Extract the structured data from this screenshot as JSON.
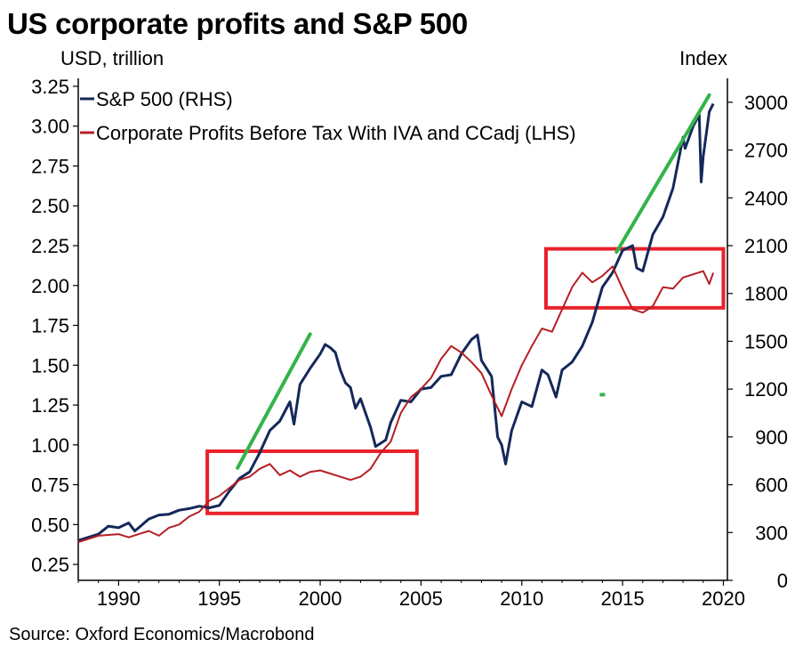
{
  "chart_data": {
    "type": "line",
    "title": "US corporate profits and S&P 500",
    "left_axis_label": "USD, trillion",
    "right_axis_label": "Index",
    "source": "Source: Oxford Economics/Macrobond",
    "colors": {
      "sp500": "#14285a",
      "profits": "#b51f24",
      "trend": "#33b34a",
      "highlight": "#e8212b"
    },
    "x_axis": {
      "range": [
        1988,
        2020.2
      ],
      "ticks": [
        1990,
        1995,
        2000,
        2005,
        2010,
        2015,
        2020
      ],
      "tick_labels": [
        "1990",
        "1995",
        "2000",
        "2005",
        "2010",
        "2015",
        "2020"
      ]
    },
    "left_axis": {
      "range": [
        0.15,
        3.3
      ],
      "ticks": [
        0.25,
        0.5,
        0.75,
        1.0,
        1.25,
        1.5,
        1.75,
        2.0,
        2.25,
        2.5,
        2.75,
        3.0,
        3.25
      ],
      "tick_labels": [
        "0.25",
        "0.50",
        "0.75",
        "1.00",
        "1.25",
        "1.50",
        "1.75",
        "2.00",
        "2.25",
        "2.50",
        "2.75",
        "3.00",
        "3.25"
      ]
    },
    "right_axis": {
      "range": [
        0,
        3150
      ],
      "ticks": [
        0,
        300,
        600,
        900,
        1200,
        1500,
        1800,
        2100,
        2400,
        2700,
        3000
      ],
      "tick_labels": [
        "0",
        "300",
        "600",
        "900",
        "1200",
        "1500",
        "1800",
        "2100",
        "2400",
        "2700",
        "3000"
      ]
    },
    "legend": {
      "position": "top-left"
    },
    "series": [
      {
        "name": "S&P 500 (RHS)",
        "axis": "right",
        "x": [
          1988.0,
          1988.5,
          1989.0,
          1989.5,
          1990.0,
          1990.5,
          1990.8,
          1991.0,
          1991.5,
          1992.0,
          1992.5,
          1993.0,
          1993.5,
          1994.0,
          1994.5,
          1995.0,
          1995.5,
          1996.0,
          1996.5,
          1997.0,
          1997.5,
          1998.0,
          1998.5,
          1998.7,
          1999.0,
          1999.5,
          2000.0,
          2000.25,
          2000.5,
          2000.75,
          2001.0,
          2001.25,
          2001.5,
          2001.75,
          2002.0,
          2002.5,
          2002.75,
          2003.0,
          2003.25,
          2003.5,
          2004.0,
          2004.5,
          2005.0,
          2005.5,
          2006.0,
          2006.5,
          2007.0,
          2007.5,
          2007.8,
          2008.0,
          2008.5,
          2008.8,
          2009.0,
          2009.2,
          2009.5,
          2010.0,
          2010.5,
          2011.0,
          2011.3,
          2011.7,
          2012.0,
          2012.5,
          2013.0,
          2013.5,
          2014.0,
          2014.5,
          2015.0,
          2015.5,
          2015.7,
          2016.0,
          2016.5,
          2017.0,
          2017.5,
          2018.0,
          2018.1,
          2018.5,
          2018.8,
          2018.9,
          2019.0,
          2019.3,
          2019.5
        ],
        "values": [
          250,
          270,
          290,
          340,
          330,
          360,
          310,
          330,
          385,
          410,
          415,
          440,
          450,
          465,
          455,
          470,
          560,
          640,
          680,
          800,
          940,
          1000,
          1120,
          980,
          1230,
          1330,
          1420,
          1480,
          1460,
          1430,
          1320,
          1240,
          1210,
          1080,
          1140,
          960,
          840,
          860,
          880,
          990,
          1130,
          1120,
          1200,
          1210,
          1280,
          1290,
          1420,
          1510,
          1540,
          1380,
          1280,
          900,
          850,
          730,
          940,
          1120,
          1090,
          1320,
          1290,
          1150,
          1320,
          1370,
          1470,
          1620,
          1840,
          1930,
          2070,
          2100,
          1960,
          1940,
          2170,
          2280,
          2460,
          2780,
          2710,
          2850,
          2920,
          2500,
          2660,
          2940,
          2990
        ]
      },
      {
        "name": "Corporate Profits Before Tax With IVA and CCadj (LHS)",
        "axis": "left",
        "x": [
          1988.0,
          1989.0,
          1990.0,
          1990.5,
          1991.0,
          1991.5,
          1992.0,
          1992.5,
          1993.0,
          1993.5,
          1994.0,
          1994.5,
          1995.0,
          1995.5,
          1996.0,
          1996.5,
          1997.0,
          1997.5,
          1998.0,
          1998.5,
          1999.0,
          1999.5,
          2000.0,
          2000.5,
          2001.0,
          2001.5,
          2002.0,
          2002.5,
          2003.0,
          2003.5,
          2004.0,
          2004.5,
          2005.0,
          2005.5,
          2006.0,
          2006.5,
          2007.0,
          2007.5,
          2008.0,
          2008.5,
          2009.0,
          2009.5,
          2010.0,
          2010.5,
          2011.0,
          2011.5,
          2012.0,
          2012.5,
          2013.0,
          2013.5,
          2014.0,
          2014.5,
          2015.0,
          2015.5,
          2016.0,
          2016.5,
          2017.0,
          2017.5,
          2018.0,
          2018.5,
          2019.0,
          2019.3,
          2019.5
        ],
        "values": [
          0.39,
          0.43,
          0.44,
          0.42,
          0.44,
          0.46,
          0.43,
          0.48,
          0.5,
          0.55,
          0.58,
          0.65,
          0.68,
          0.73,
          0.78,
          0.8,
          0.85,
          0.88,
          0.81,
          0.84,
          0.8,
          0.83,
          0.84,
          0.82,
          0.8,
          0.78,
          0.8,
          0.85,
          0.95,
          1.02,
          1.2,
          1.3,
          1.35,
          1.42,
          1.54,
          1.62,
          1.58,
          1.52,
          1.45,
          1.31,
          1.18,
          1.35,
          1.5,
          1.62,
          1.73,
          1.71,
          1.85,
          1.99,
          2.08,
          2.02,
          2.06,
          2.12,
          1.98,
          1.85,
          1.83,
          1.87,
          1.99,
          1.98,
          2.05,
          2.07,
          2.09,
          2.01,
          2.08
        ]
      }
    ],
    "annotations": {
      "trend_lines": [
        {
          "axis": "right",
          "x": [
            1995.9,
            1999.5
          ],
          "values": [
            705,
            1545
          ]
        },
        {
          "axis": "right",
          "x": [
            2014.7,
            2019.3
          ],
          "values": [
            2060,
            3045
          ]
        }
      ],
      "highlight_boxes": [
        {
          "x_range": [
            1994.4,
            2004.8
          ],
          "y_range_left": [
            0.57,
            0.96
          ]
        },
        {
          "x_range": [
            2011.2,
            2020.0
          ],
          "y_range_left": [
            1.86,
            2.23
          ]
        }
      ],
      "marker_points": [
        {
          "axis": "right",
          "x": 2014.0,
          "value": 1165
        }
      ]
    }
  }
}
